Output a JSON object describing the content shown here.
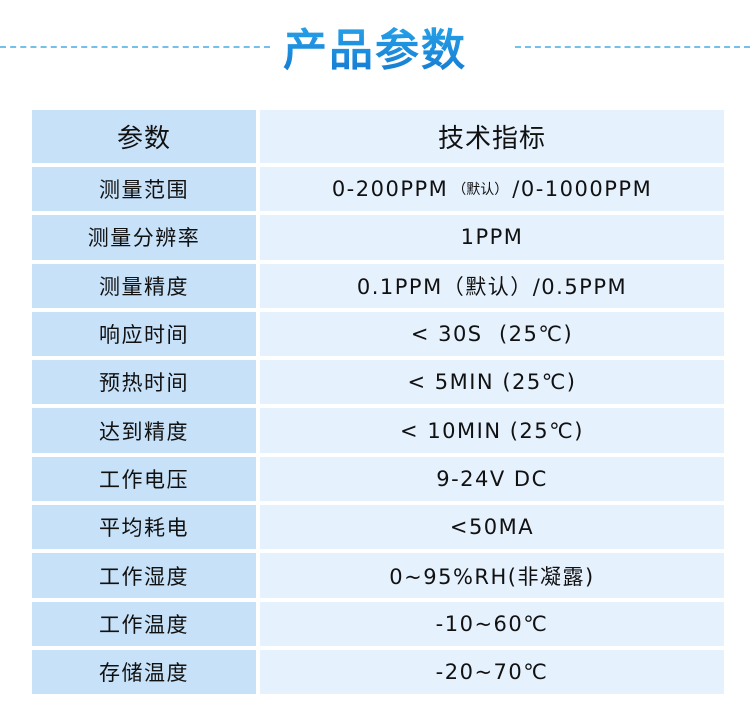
{
  "title": "产品参数",
  "header": {
    "param": "参数",
    "spec": "技术指标"
  },
  "rows": [
    {
      "param": "测量范围",
      "value": "0-200PPM",
      "note": "（默认）",
      "value2": "/0-1000PPM"
    },
    {
      "param": "测量分辨率",
      "value": "1PPM"
    },
    {
      "param": "测量精度",
      "value": "0.1PPM（默认）/0.5PPM"
    },
    {
      "param": "响应时间",
      "value": "< 30S  (25℃)"
    },
    {
      "param": "预热时间",
      "value": "< 5MIN (25℃)"
    },
    {
      "param": "达到精度",
      "value": "< 10MIN (25℃)"
    },
    {
      "param": "工作电压",
      "value": "9-24V DC"
    },
    {
      "param": "平均耗电",
      "value": "<50MA"
    },
    {
      "param": "工作湿度",
      "value": "0~95%RH(非凝露)"
    },
    {
      "param": "工作温度",
      "value": "-10~60℃"
    },
    {
      "param": "存储温度",
      "value": "-20~70℃"
    }
  ],
  "colors": {
    "title": "#1a8fe0",
    "param_bg": "#c7e1f8",
    "value_bg": "#e5f1fd",
    "dash": "#74c0e8"
  }
}
